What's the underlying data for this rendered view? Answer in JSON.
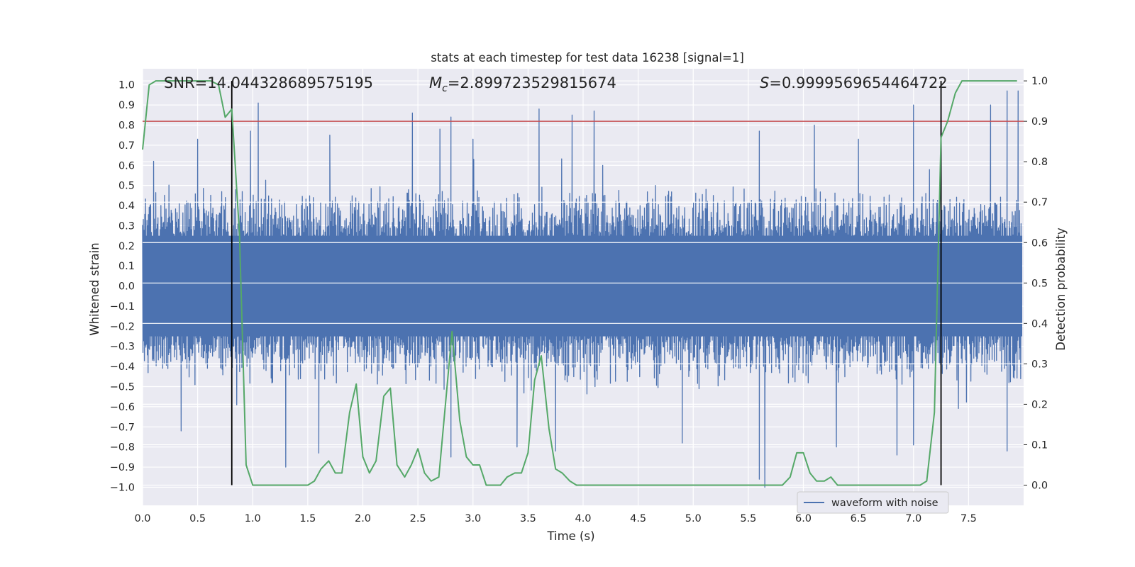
{
  "chart_data": {
    "type": "line",
    "title": "stats at each timestep for test data 16238 [signal=1]",
    "xlabel": "Time (s)",
    "ylabel": "Whitened strain",
    "y2label": "Detection probability",
    "xlim": [
      0.0,
      8.0
    ],
    "ylim": [
      -1.09,
      1.08
    ],
    "y2lim": [
      -0.05,
      1.03
    ],
    "xticks": [
      "0.0",
      "0.5",
      "1.0",
      "1.5",
      "2.0",
      "2.5",
      "3.0",
      "3.5",
      "4.0",
      "4.5",
      "5.0",
      "5.5",
      "6.0",
      "6.5",
      "7.0",
      "7.5"
    ],
    "yticks": [
      "1.0",
      "0.9",
      "0.8",
      "0.7",
      "0.6",
      "0.5",
      "0.4",
      "0.3",
      "0.2",
      "0.1",
      "0.0",
      "-0.1",
      "-0.2",
      "-0.3",
      "-0.4",
      "-0.5",
      "-0.6",
      "-0.7",
      "-0.8",
      "-0.9",
      "-1.0"
    ],
    "y2ticks": [
      "1.0",
      "0.9",
      "0.8",
      "0.7",
      "0.6",
      "0.5",
      "0.4",
      "0.3",
      "0.2",
      "0.1",
      "0.0"
    ],
    "annotations": {
      "snr": "SNR=14.044328689575195",
      "mc_symbol": "M",
      "mc_sub": "c",
      "mc_value": "=2.899723529815674",
      "s_symbol": "S",
      "s_value": "=0.9999569654464722"
    },
    "legend": {
      "label": "waveform with noise",
      "placement": "lower-right"
    },
    "threshold": {
      "value": 0.9,
      "axis": "right"
    },
    "vlines": [
      0.81,
      7.25
    ],
    "waveform": {
      "name": "waveform with noise",
      "color": "#4c72b0",
      "typical_envelope": 0.4,
      "peaks_positive": [
        [
          0.1,
          0.62
        ],
        [
          0.5,
          0.73
        ],
        [
          0.98,
          0.77
        ],
        [
          1.05,
          0.91
        ],
        [
          1.7,
          0.75
        ],
        [
          2.45,
          0.86
        ],
        [
          2.7,
          0.78
        ],
        [
          2.8,
          0.84
        ],
        [
          3.0,
          0.73
        ],
        [
          3.6,
          0.88
        ],
        [
          3.9,
          0.85
        ],
        [
          4.1,
          0.87
        ],
        [
          5.6,
          0.77
        ],
        [
          6.1,
          0.8
        ],
        [
          6.5,
          0.73
        ],
        [
          7.0,
          0.9
        ],
        [
          7.25,
          0.84
        ],
        [
          7.7,
          0.9
        ],
        [
          7.85,
          0.97
        ],
        [
          7.95,
          0.97
        ]
      ],
      "peaks_negative": [
        [
          0.35,
          -0.72
        ],
        [
          1.3,
          -0.9
        ],
        [
          1.6,
          -0.83
        ],
        [
          2.8,
          -0.85
        ],
        [
          3.4,
          -0.8
        ],
        [
          3.75,
          -0.82
        ],
        [
          4.9,
          -0.78
        ],
        [
          5.6,
          -0.96
        ],
        [
          5.65,
          -1.0
        ],
        [
          6.3,
          -0.8
        ],
        [
          6.85,
          -0.84
        ],
        [
          7.0,
          -0.79
        ],
        [
          7.85,
          -0.82
        ]
      ]
    },
    "series": [
      {
        "name": "detection probability",
        "axis": "right",
        "color": "#55a868",
        "x": [
          0.0,
          0.06,
          0.12,
          0.19,
          0.25,
          0.31,
          0.38,
          0.44,
          0.5,
          0.56,
          0.62,
          0.69,
          0.75,
          0.81,
          0.88,
          0.94,
          1.0,
          1.06,
          1.12,
          1.19,
          1.25,
          1.31,
          1.38,
          1.44,
          1.5,
          1.56,
          1.62,
          1.69,
          1.75,
          1.81,
          1.88,
          1.94,
          2.0,
          2.06,
          2.12,
          2.19,
          2.25,
          2.31,
          2.38,
          2.44,
          2.5,
          2.56,
          2.62,
          2.69,
          2.75,
          2.81,
          2.88,
          2.94,
          3.0,
          3.06,
          3.12,
          3.19,
          3.25,
          3.31,
          3.38,
          3.44,
          3.5,
          3.56,
          3.62,
          3.69,
          3.75,
          3.81,
          3.88,
          3.94,
          4.0,
          4.25,
          4.5,
          4.75,
          5.0,
          5.25,
          5.5,
          5.56,
          5.62,
          5.69,
          5.75,
          5.81,
          5.88,
          5.94,
          6.0,
          6.06,
          6.12,
          6.19,
          6.25,
          6.31,
          6.38,
          6.5,
          6.75,
          7.0,
          7.06,
          7.12,
          7.19,
          7.25,
          7.31,
          7.38,
          7.44,
          7.5,
          7.56,
          7.62,
          7.69,
          7.75,
          7.81,
          7.88,
          7.94
        ],
        "values": [
          0.83,
          0.99,
          1.0,
          1.0,
          1.0,
          1.0,
          1.0,
          1.0,
          1.0,
          1.0,
          1.0,
          0.99,
          0.91,
          0.93,
          0.62,
          0.05,
          0.0,
          0.0,
          0.0,
          0.0,
          0.0,
          0.0,
          0.0,
          0.0,
          0.0,
          0.01,
          0.04,
          0.06,
          0.03,
          0.03,
          0.18,
          0.25,
          0.07,
          0.03,
          0.06,
          0.22,
          0.24,
          0.05,
          0.02,
          0.05,
          0.09,
          0.03,
          0.01,
          0.02,
          0.2,
          0.38,
          0.16,
          0.07,
          0.05,
          0.05,
          0.0,
          0.0,
          0.0,
          0.02,
          0.03,
          0.03,
          0.08,
          0.26,
          0.32,
          0.14,
          0.04,
          0.03,
          0.01,
          0.0,
          0.0,
          0.0,
          0.0,
          0.0,
          0.0,
          0.0,
          0.0,
          0.0,
          0.0,
          0.0,
          0.0,
          0.0,
          0.02,
          0.08,
          0.08,
          0.03,
          0.01,
          0.01,
          0.02,
          0.0,
          0.0,
          0.0,
          0.0,
          0.0,
          0.0,
          0.01,
          0.18,
          0.86,
          0.9,
          0.97,
          1.0,
          1.0,
          1.0,
          1.0,
          1.0,
          1.0,
          1.0,
          1.0,
          1.0
        ]
      }
    ]
  }
}
